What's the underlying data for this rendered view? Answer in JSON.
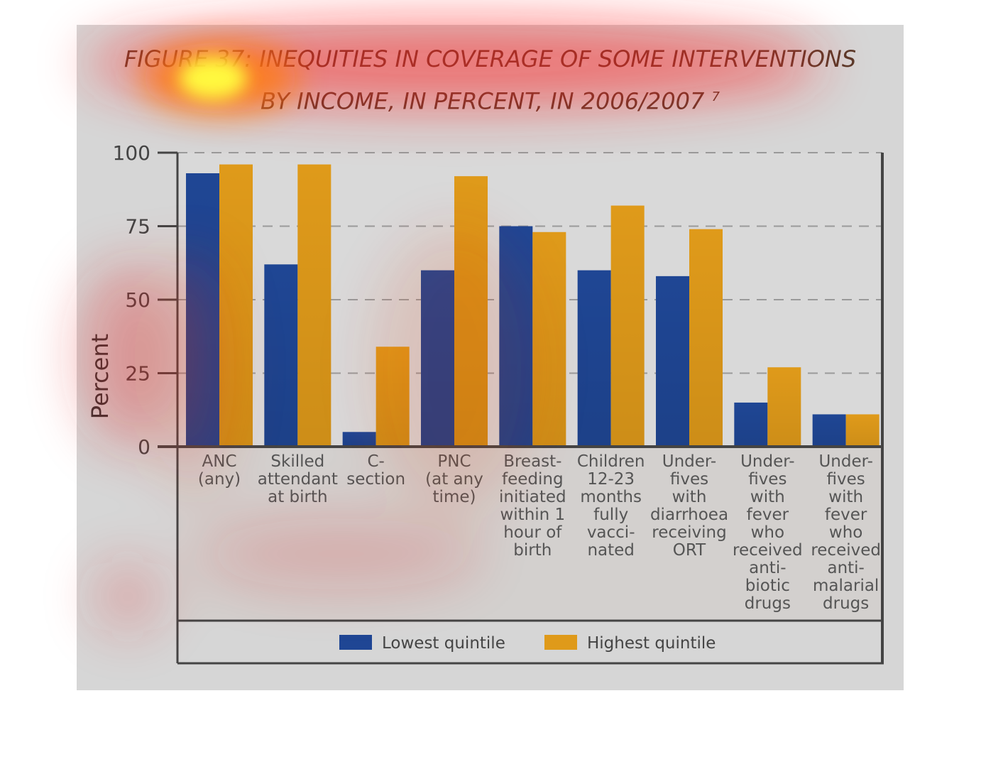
{
  "title_line1": "FIGURE 37: INEQUITIES IN COVERAGE OF SOME INTERVENTIONS",
  "title_line2": "BY INCOME, IN PERCENT, IN 2006/2007",
  "title_footnote": "7",
  "chart_data": {
    "type": "bar",
    "ylabel": "Percent",
    "xlabel": "",
    "ylim": [
      0,
      100
    ],
    "yticks": [
      "0",
      "25",
      "50",
      "75",
      "100"
    ],
    "grid": "dashed horizontal",
    "legend_position": "bottom",
    "categories": [
      "ANC (any)",
      "Skilled attendant at birth",
      "C-section",
      "PNC (at any time)",
      "Breast-feeding initiated within 1 hour of birth",
      "Children 12-23 months fully vacci-nated",
      "Under-fives with diarrhoea receiving ORT",
      "Under-fives with fever who received anti-biotic drugs",
      "Under-fives with fever who received anti-malarial drugs"
    ],
    "category_label_lines": [
      [
        "ANC",
        "(any)"
      ],
      [
        "Skilled",
        "attendant",
        "at birth"
      ],
      [
        "C-",
        "section"
      ],
      [
        "PNC",
        "(at any",
        "time)"
      ],
      [
        "Breast-",
        "feeding",
        "initiated",
        "within 1",
        "hour of",
        "birth"
      ],
      [
        "Children",
        "12-23",
        "months",
        "fully",
        "vacci-",
        "nated"
      ],
      [
        "Under-",
        "fives",
        "with",
        "diarrhoea",
        "receiving",
        "ORT"
      ],
      [
        "Under-",
        "fives",
        "with",
        "fever",
        "who",
        "received",
        "anti-",
        "biotic",
        "drugs"
      ],
      [
        "Under-",
        "fives",
        "with",
        "fever",
        "who",
        "received",
        "anti-",
        "malarial",
        "drugs"
      ]
    ],
    "series": [
      {
        "name": "Lowest quintile",
        "color": "#1f4694",
        "values": [
          93,
          62,
          5,
          60,
          75,
          60,
          58,
          15,
          11
        ]
      },
      {
        "name": "Highest quintile",
        "color": "#df9a1a",
        "values": [
          96,
          96,
          34,
          92,
          73,
          82,
          74,
          27,
          11
        ]
      }
    ]
  }
}
